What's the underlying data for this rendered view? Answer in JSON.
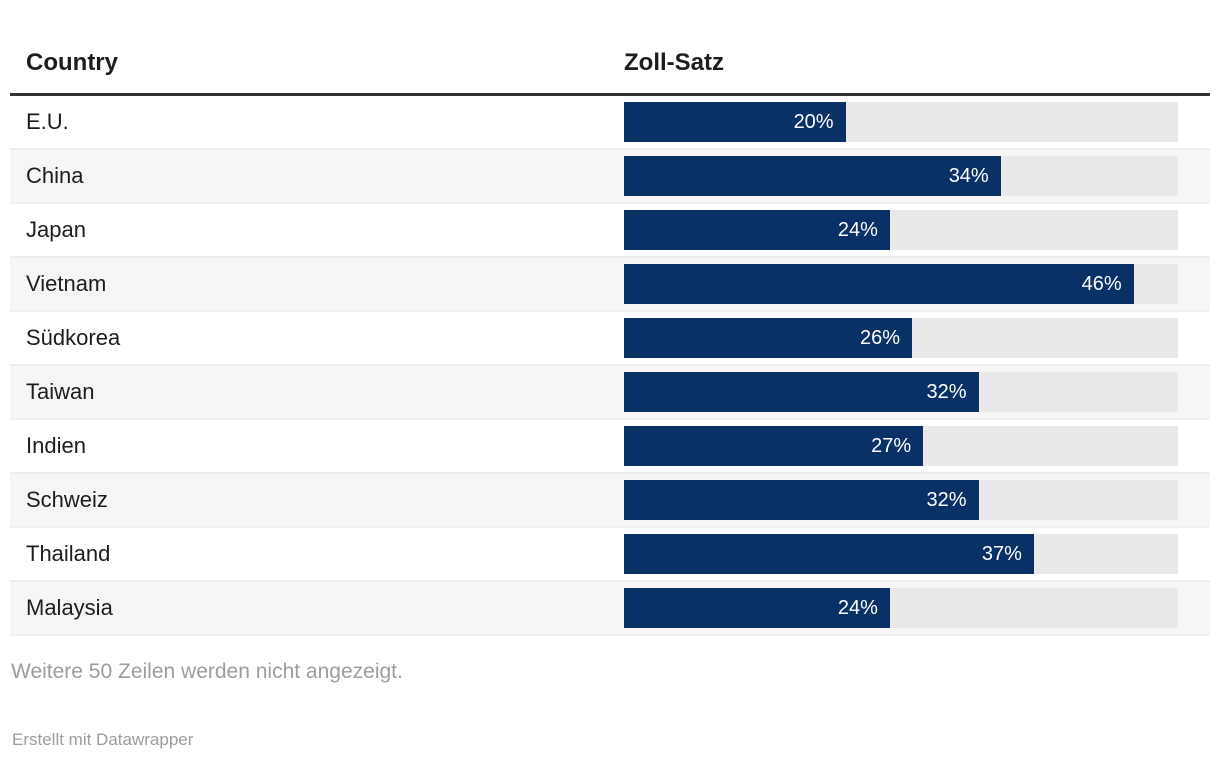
{
  "table": {
    "columns": [
      {
        "label": "Country"
      },
      {
        "label": "Zoll-Satz"
      }
    ]
  },
  "footer": {
    "note": "Weitere 50 Zeilen werden nicht angezeigt.",
    "attribution": "Erstellt mit Datawrapper"
  },
  "colors": {
    "bar": "#0a3166",
    "bar_track": "#e9e9e9",
    "row_stripe": "#f6f6f6",
    "header_rule": "#333333",
    "muted_text": "#9d9d9d"
  },
  "chart_data": {
    "type": "bar",
    "orientation": "horizontal",
    "title": "",
    "xlabel": "Zoll-Satz",
    "ylabel": "Country",
    "categories": [
      "E.U.",
      "China",
      "Japan",
      "Vietnam",
      "Südkorea",
      "Taiwan",
      "Indien",
      "Schweiz",
      "Thailand",
      "Malaysia"
    ],
    "values": [
      20,
      34,
      24,
      46,
      26,
      32,
      27,
      32,
      37,
      24
    ],
    "value_suffix": "%",
    "xlim": [
      0,
      50
    ],
    "grid": false,
    "legend": false,
    "value_labels_inside_bars": true
  }
}
